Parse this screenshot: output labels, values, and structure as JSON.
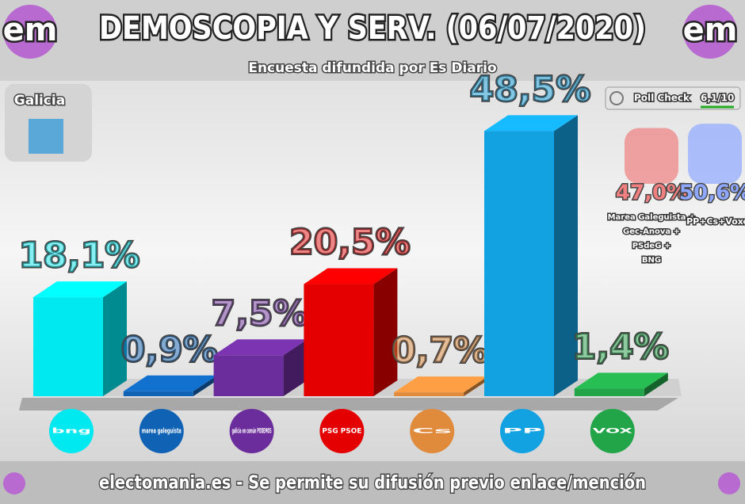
{
  "chart_data": {
    "type": "bar3d",
    "title": "DEMOSCOPIA Y SERV. (06/07/2020)",
    "subtitle": "Encuesta difundida por Es Diario",
    "region": "Galicia",
    "poll_check": "Poll Check",
    "poll_check_score": "6,1/10",
    "brand": "em",
    "footer": "electomania.es - Se permite su difusión previo enlace/mención",
    "categories": [
      "bng",
      "marea galeguista",
      "galicia en común PODEMOS",
      "PSG PSOE",
      "Cs",
      "PP",
      "VOX"
    ],
    "values": [
      18.1,
      0.9,
      7.5,
      20.5,
      0.7,
      48.5,
      1.4
    ],
    "value_labels": [
      "18,1%",
      "0,9%",
      "7,5%",
      "20,5%",
      "0,7%",
      "48,5%",
      "1,4%"
    ],
    "colors": [
      "#00e8f0",
      "#1062b4",
      "#6c2d9c",
      "#e40000",
      "#e08a3c",
      "#12a2e2",
      "#22a548"
    ],
    "blocs": [
      {
        "name": "Marea Galeguista + Gec-Anova + PSdeG + BNG",
        "value": 47.0,
        "value_label": "47,0%",
        "color": "#f08080"
      },
      {
        "name": "PP+Cs+Vox",
        "value": 50.6,
        "value_label": "50,6%",
        "color": "#8ea8ff"
      }
    ]
  }
}
